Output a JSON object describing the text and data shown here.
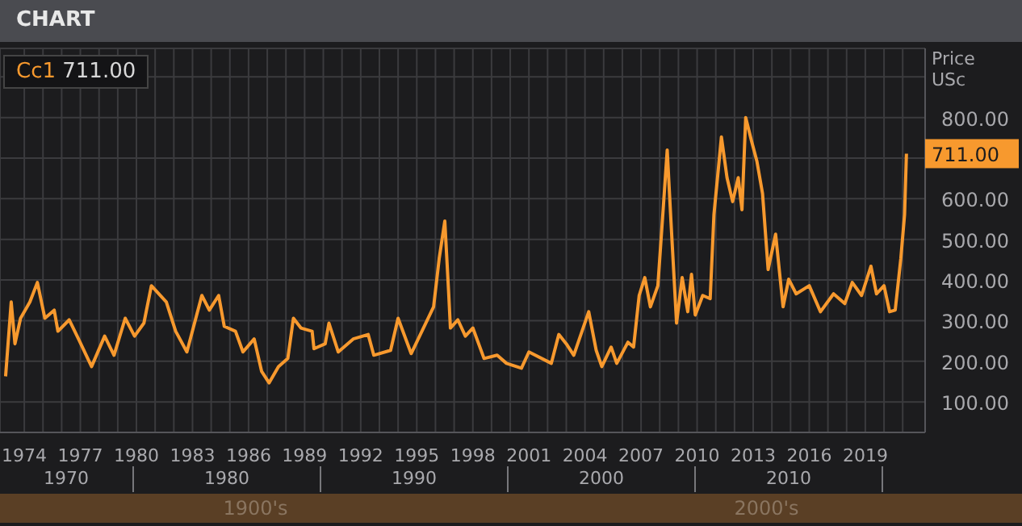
{
  "chart_data": {
    "type": "line",
    "title": "CHART",
    "ylabel": "Price USc",
    "x": [
      1973.0,
      1973.3,
      1973.5,
      1973.8,
      1974.3,
      1974.7,
      1975.1,
      1975.6,
      1975.8,
      1976.4,
      1976.9,
      1977.6,
      1978.3,
      1978.8,
      1979.4,
      1979.9,
      1980.4,
      1980.8,
      1981.6,
      1982.1,
      1982.7,
      1983.5,
      1983.9,
      1984.4,
      1984.7,
      1985.3,
      1985.7,
      1986.3,
      1986.7,
      1987.1,
      1987.6,
      1988.1,
      1988.4,
      1988.8,
      1989.4,
      1989.5,
      1990.1,
      1990.3,
      1990.8,
      1991.6,
      1992.4,
      1992.7,
      1993.6,
      1994.0,
      1994.7,
      1995.9,
      1996.2,
      1996.5,
      1996.7,
      1996.8,
      1997.2,
      1997.6,
      1998.0,
      1998.6,
      1999.3,
      1999.8,
      2000.6,
      2001.0,
      2002.2,
      2002.6,
      2003.0,
      2003.4,
      2004.2,
      2004.6,
      2004.9,
      2005.4,
      2005.7,
      2006.3,
      2006.6,
      2006.9,
      2007.2,
      2007.5,
      2007.9,
      2008.2,
      2008.4,
      2008.6,
      2008.9,
      2009.2,
      2009.5,
      2009.7,
      2009.9,
      2010.3,
      2010.7,
      2010.9,
      2011.2,
      2011.3,
      2011.6,
      2011.9,
      2012.2,
      2012.4,
      2012.6,
      2012.9,
      2013.2,
      2013.5,
      2013.8,
      2014.2,
      2014.6,
      2014.9,
      2015.3,
      2016.0,
      2016.6,
      2017.3,
      2017.9,
      2018.3,
      2018.8,
      2019.3,
      2019.6,
      2020.0,
      2020.3,
      2020.6,
      2020.9,
      2021.1,
      2021.2
    ],
    "series": [
      {
        "name": "Cc1",
        "color": "#f7992e",
        "values": [
          163,
          346,
          243,
          306,
          346,
          394,
          306,
          326,
          274,
          302,
          255,
          187,
          262,
          215,
          306,
          262,
          294,
          386,
          346,
          274,
          223,
          362,
          326,
          362,
          286,
          274,
          223,
          255,
          175,
          147,
          187,
          207,
          306,
          282,
          274,
          231,
          243,
          294,
          223,
          255,
          266,
          215,
          227,
          306,
          219,
          334,
          453,
          545,
          374,
          282,
          302,
          262,
          282,
          207,
          215,
          195,
          183,
          223,
          195,
          266,
          243,
          215,
          322,
          227,
          187,
          235,
          195,
          247,
          235,
          362,
          406,
          334,
          386,
          585,
          720,
          545,
          294,
          406,
          322,
          414,
          314,
          362,
          354,
          561,
          704,
          752,
          652,
          593,
          652,
          573,
          800,
          744,
          692,
          613,
          426,
          513,
          334,
          402,
          366,
          386,
          322,
          366,
          342,
          394,
          362,
          434,
          366,
          386,
          322,
          326,
          453,
          561,
          711
        ],
        "value_labels": [
          null,
          null,
          null,
          null,
          null,
          null,
          null,
          null,
          null,
          null,
          null,
          null,
          null,
          null,
          null,
          null,
          null,
          null,
          null,
          null,
          null,
          null,
          null,
          null,
          null,
          null,
          null,
          null,
          null,
          null,
          null,
          null,
          null,
          null,
          null,
          null,
          null,
          null,
          null,
          null,
          null,
          null,
          null,
          null,
          null,
          null,
          null,
          null,
          null,
          null,
          null,
          null,
          null,
          null,
          null,
          null,
          null,
          null,
          null,
          null,
          null,
          null,
          null,
          null,
          null,
          null,
          null,
          null,
          null,
          null,
          null,
          null,
          null,
          null,
          null,
          null,
          null,
          null,
          null,
          null,
          null,
          null,
          null,
          null,
          null,
          null,
          null,
          null,
          null,
          null,
          null,
          null,
          null,
          null,
          null,
          null,
          null,
          null,
          null,
          null,
          null,
          null,
          null,
          null,
          null,
          null,
          null,
          null,
          null,
          null,
          null,
          null,
          "711.00"
        ]
      }
    ],
    "xlim": [
      1972.7,
      2022.2
    ],
    "xticks": [
      1974,
      {
        "value": 1975,
        "label": null
      },
      {
        "value": 1976,
        "label": null
      },
      1977,
      {
        "value": 1978,
        "label": null
      },
      {
        "value": 1979,
        "label": null
      },
      1980,
      {
        "value": 1981,
        "label": null
      },
      {
        "value": 1982,
        "label": null
      },
      1983,
      {
        "value": 1984,
        "label": null
      },
      {
        "value": 1985,
        "label": null
      },
      1986,
      {
        "value": 1987,
        "label": null
      },
      {
        "value": 1988,
        "label": null
      },
      1989,
      {
        "value": 1990,
        "label": null
      },
      {
        "value": 1991,
        "label": null
      },
      1992,
      {
        "value": 1993,
        "label": null
      },
      {
        "value": 1994,
        "label": null
      },
      1995,
      {
        "value": 1996,
        "label": null
      },
      {
        "value": 1997,
        "label": null
      },
      1998,
      {
        "value": 1999,
        "label": null
      },
      {
        "value": 2000,
        "label": null
      },
      2001,
      {
        "value": 2002,
        "label": null
      },
      {
        "value": 2003,
        "label": null
      },
      2004,
      {
        "value": 2005,
        "label": null
      },
      {
        "value": 2006,
        "label": null
      },
      2007,
      {
        "value": 2008,
        "label": null
      },
      {
        "value": 2009,
        "label": null
      },
      2010,
      {
        "value": 2011,
        "label": null
      },
      {
        "value": 2012,
        "label": null
      },
      2013,
      {
        "value": 2014,
        "label": null
      },
      {
        "value": 2015,
        "label": null
      },
      2016,
      {
        "value": 2017,
        "label": null
      },
      {
        "value": 2018,
        "label": null
      },
      2019,
      {
        "value": 2020,
        "label": null
      },
      {
        "value": 2021,
        "label": null
      }
    ],
    "ylim": [
      25,
      970
    ],
    "yticks": [
      {
        "value": 100,
        "label": "100.00"
      },
      {
        "value": 200,
        "label": "200.00"
      },
      {
        "value": 300,
        "label": "300.00"
      },
      {
        "value": 400,
        "label": "400.00"
      },
      {
        "value": 500,
        "label": "500.00"
      },
      {
        "value": 600,
        "label": "600.00"
      },
      {
        "value": 700,
        "label": null
      },
      {
        "value": 800,
        "label": "800.00"
      },
      {
        "value": 900,
        "label": null
      }
    ],
    "grid": true,
    "legend": "top left",
    "annotations": [
      "1970",
      "1980",
      "1990",
      "2000",
      "2010",
      "1900's",
      "2000's"
    ]
  }
}
